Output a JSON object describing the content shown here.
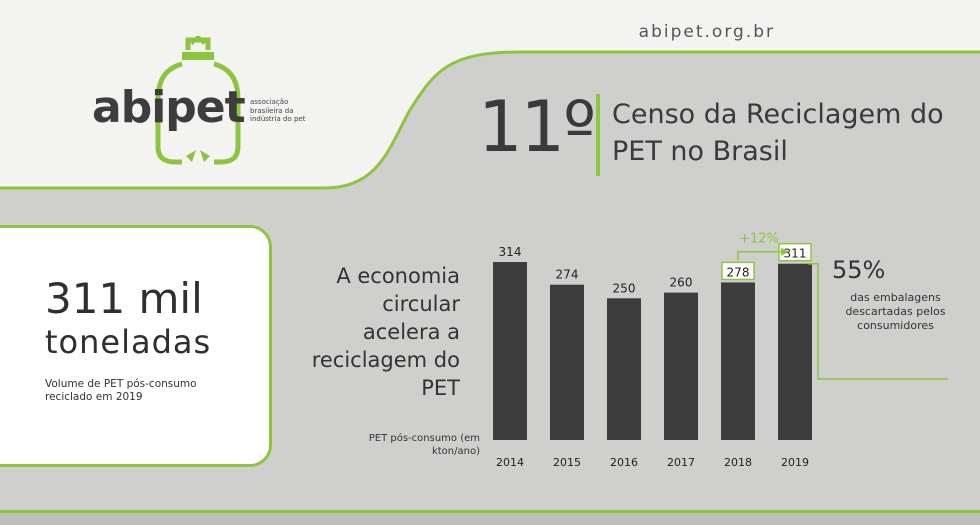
{
  "site_url": "abipet.org.br",
  "logo": {
    "wordmark": "abipet",
    "tagline": "associação brasileira da indústria do pet"
  },
  "header": {
    "edition": "11º",
    "title": "Censo da Reciclagem do PET no Brasil"
  },
  "highlight": {
    "value": "311 mil",
    "unit": "toneladas",
    "description": "Volume de PET pós-consumo reciclado em 2019"
  },
  "headline": "A economia circular acelera a reciclagem do PET",
  "chart_unit_label": "PET pós-consumo (em kton/ano)",
  "side_stat": {
    "value": "55%",
    "description": "das embalagens descartadas pelos consumidores"
  },
  "colors": {
    "accent": "#8cc63f",
    "bar": "#3d3d3d",
    "panel": "#cfcfce",
    "background": "#f3f3f2"
  },
  "chart_data": {
    "type": "bar",
    "title": "",
    "xlabel": "",
    "ylabel": "PET pós-consumo (em kton/ano)",
    "categories": [
      "2014",
      "2015",
      "2016",
      "2017",
      "2018",
      "2019"
    ],
    "values": [
      314,
      274,
      250,
      260,
      278,
      311
    ],
    "ylim": [
      0,
      314
    ],
    "highlighted_categories": [
      "2018",
      "2019"
    ],
    "annotation": "+12%",
    "grid": false,
    "legend": "none"
  }
}
